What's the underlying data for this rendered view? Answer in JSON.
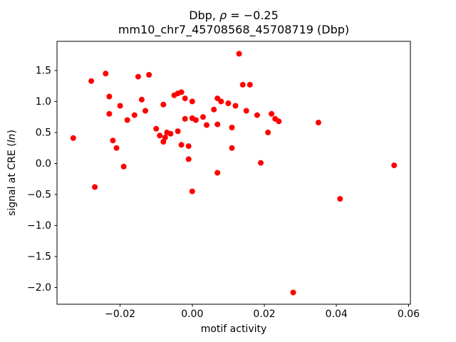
{
  "chart_data": {
    "type": "scatter",
    "title": "Dbp, ρ = −0.25",
    "title_parts": {
      "prefix": "Dbp, ",
      "rho": "ρ",
      "rest": " = −0.25"
    },
    "subtitle": "mm10_chr7_45708568_45708719 (Dbp)",
    "xlabel": "motif activity",
    "ylabel": "signal at CRE (ln)",
    "ylabel_parts": {
      "prefix": "signal at CRE (",
      "italic": "ln",
      "suffix": ")"
    },
    "marker_color": "#ff0000",
    "axis_color": "#000000",
    "xlim": [
      -0.0375,
      0.0605
    ],
    "ylim": [
      -2.27,
      1.97
    ],
    "xticks": [
      -0.02,
      0.0,
      0.02,
      0.04,
      0.06
    ],
    "yticks": [
      -2.0,
      -1.5,
      -1.0,
      -0.5,
      0.0,
      0.5,
      1.0,
      1.5
    ],
    "legend": "none",
    "grid": false,
    "points": [
      [
        -0.033,
        0.41
      ],
      [
        -0.028,
        1.33
      ],
      [
        -0.027,
        -0.38
      ],
      [
        -0.024,
        1.45
      ],
      [
        -0.023,
        1.08
      ],
      [
        -0.023,
        0.8
      ],
      [
        -0.022,
        0.37
      ],
      [
        -0.021,
        0.25
      ],
      [
        -0.02,
        0.93
      ],
      [
        -0.019,
        -0.05
      ],
      [
        -0.018,
        0.7
      ],
      [
        -0.016,
        0.78
      ],
      [
        -0.015,
        1.4
      ],
      [
        -0.014,
        1.03
      ],
      [
        -0.013,
        0.85
      ],
      [
        -0.012,
        1.43
      ],
      [
        -0.01,
        0.56
      ],
      [
        -0.009,
        0.45
      ],
      [
        -0.008,
        0.95
      ],
      [
        -0.008,
        0.35
      ],
      [
        -0.0075,
        0.42
      ],
      [
        -0.007,
        0.5
      ],
      [
        -0.006,
        0.48
      ],
      [
        -0.005,
        1.1
      ],
      [
        -0.004,
        1.13
      ],
      [
        -0.004,
        0.52
      ],
      [
        -0.003,
        1.15
      ],
      [
        -0.003,
        0.3
      ],
      [
        -0.002,
        1.05
      ],
      [
        -0.002,
        0.72
      ],
      [
        -0.001,
        0.28
      ],
      [
        -0.001,
        0.07
      ],
      [
        0.0,
        1.0
      ],
      [
        0.0,
        0.73
      ],
      [
        0.0,
        -0.45
      ],
      [
        0.001,
        0.7
      ],
      [
        0.003,
        0.75
      ],
      [
        0.004,
        0.62
      ],
      [
        0.006,
        0.87
      ],
      [
        0.007,
        1.05
      ],
      [
        0.007,
        0.63
      ],
      [
        0.007,
        -0.15
      ],
      [
        0.008,
        1.0
      ],
      [
        0.01,
        0.97
      ],
      [
        0.011,
        0.58
      ],
      [
        0.011,
        0.25
      ],
      [
        0.012,
        0.93
      ],
      [
        0.013,
        1.77
      ],
      [
        0.014,
        1.27
      ],
      [
        0.015,
        0.85
      ],
      [
        0.016,
        1.27
      ],
      [
        0.018,
        0.78
      ],
      [
        0.019,
        0.01
      ],
      [
        0.021,
        0.5
      ],
      [
        0.022,
        0.8
      ],
      [
        0.023,
        0.72
      ],
      [
        0.024,
        0.68
      ],
      [
        0.028,
        -2.08
      ],
      [
        0.035,
        0.66
      ],
      [
        0.041,
        -0.57
      ],
      [
        0.056,
        -0.03
      ]
    ]
  }
}
